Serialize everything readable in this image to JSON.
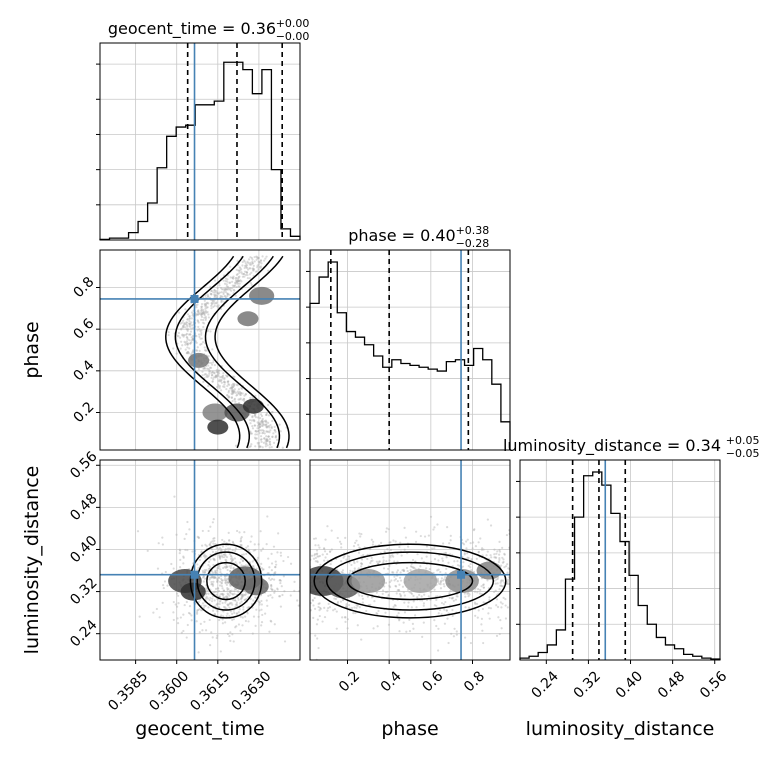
{
  "chart_data": {
    "type": "corner",
    "truth_color": "#4682b4",
    "hist_color": "#000000",
    "grid": true,
    "parameters": [
      {
        "key": "geocent_time",
        "label": "geocent_time",
        "range": [
          0.3572,
          0.3645
        ],
        "ticks": [
          0.3585,
          0.36,
          0.3615,
          0.363
        ],
        "tick_labels": [
          "0.3585",
          "0.3600",
          "0.3615",
          "0.3630"
        ],
        "truth": 0.36065,
        "quantiles": [
          0.3604,
          0.3622,
          0.36385
        ],
        "title_main": "geocent_time = 0.36",
        "title_sup": "+0.00",
        "title_sub": "−0.00",
        "hist": [
          0.003,
          0.01,
          0.01,
          0.04,
          0.1,
          0.2,
          0.39,
          0.56,
          0.61,
          0.62,
          0.73,
          0.73,
          0.75,
          0.96,
          0.96,
          0.92,
          0.79,
          0.92,
          0.38,
          0.06,
          0.02
        ]
      },
      {
        "key": "phase",
        "label": "phase",
        "range": [
          0.02,
          0.98
        ],
        "ticks": [
          0.2,
          0.4,
          0.6,
          0.8
        ],
        "tick_labels": [
          "0.2",
          "0.4",
          "0.6",
          "0.8"
        ],
        "truth": 0.745,
        "quantiles": [
          0.12,
          0.4,
          0.78
        ],
        "title_main": "phase = 0.40",
        "title_sup": "+0.38",
        "title_sub": "−0.28",
        "hist": [
          0.78,
          0.92,
          1.0,
          0.73,
          0.63,
          0.6,
          0.56,
          0.5,
          0.44,
          0.48,
          0.46,
          0.45,
          0.44,
          0.43,
          0.42,
          0.47,
          0.48,
          0.45,
          0.54,
          0.48,
          0.35,
          0.15
        ]
      },
      {
        "key": "luminosity_distance",
        "label": "luminosity_distance",
        "range": [
          0.19,
          0.57
        ],
        "ticks": [
          0.24,
          0.32,
          0.4,
          0.48,
          0.56
        ],
        "tick_labels": [
          "0.24",
          "0.32",
          "0.40",
          "0.48",
          "0.56"
        ],
        "truth": 0.352,
        "quantiles": [
          0.29,
          0.34,
          0.39
        ],
        "title_main": "luminosity_distance = 0.34",
        "title_sup": "+0.05",
        "title_sub": "−0.05",
        "hist": [
          0.01,
          0.02,
          0.04,
          0.08,
          0.16,
          0.43,
          0.76,
          0.98,
          1.0,
          0.93,
          0.78,
          0.63,
          0.45,
          0.29,
          0.19,
          0.12,
          0.08,
          0.06,
          0.03,
          0.02,
          0.01,
          0.005
        ]
      }
    ],
    "pairs": [
      {
        "x": "geocent_time",
        "y": "phase",
        "blobs": [
          [
            0.3614,
            0.2,
            3.0,
            0.55
          ],
          [
            0.3622,
            0.2,
            3.0,
            0.75
          ],
          [
            0.3628,
            0.23,
            2.5,
            0.9
          ],
          [
            0.3608,
            0.45,
            2.5,
            0.6
          ],
          [
            0.3626,
            0.65,
            2.5,
            0.6
          ],
          [
            0.3631,
            0.76,
            3.0,
            0.6
          ],
          [
            0.3615,
            0.13,
            2.5,
            0.9
          ]
        ]
      },
      {
        "x": "phase",
        "y": "luminosity_distance",
        "blobs": [
          [
            0.08,
            0.34,
            5.0,
            0.85
          ],
          [
            0.18,
            0.33,
            4.0,
            0.7
          ],
          [
            0.3,
            0.34,
            4.0,
            0.45
          ],
          [
            0.55,
            0.34,
            4.0,
            0.4
          ],
          [
            0.75,
            0.34,
            4.0,
            0.5
          ],
          [
            0.88,
            0.36,
            3.0,
            0.55
          ]
        ]
      },
      {
        "x": "geocent_time",
        "y": "luminosity_distance",
        "blobs": [
          [
            0.3603,
            0.34,
            4.0,
            0.8
          ],
          [
            0.3606,
            0.32,
            3.0,
            0.9
          ],
          [
            0.3625,
            0.345,
            4.0,
            0.7
          ],
          [
            0.3629,
            0.33,
            3.0,
            0.65
          ]
        ]
      }
    ]
  }
}
